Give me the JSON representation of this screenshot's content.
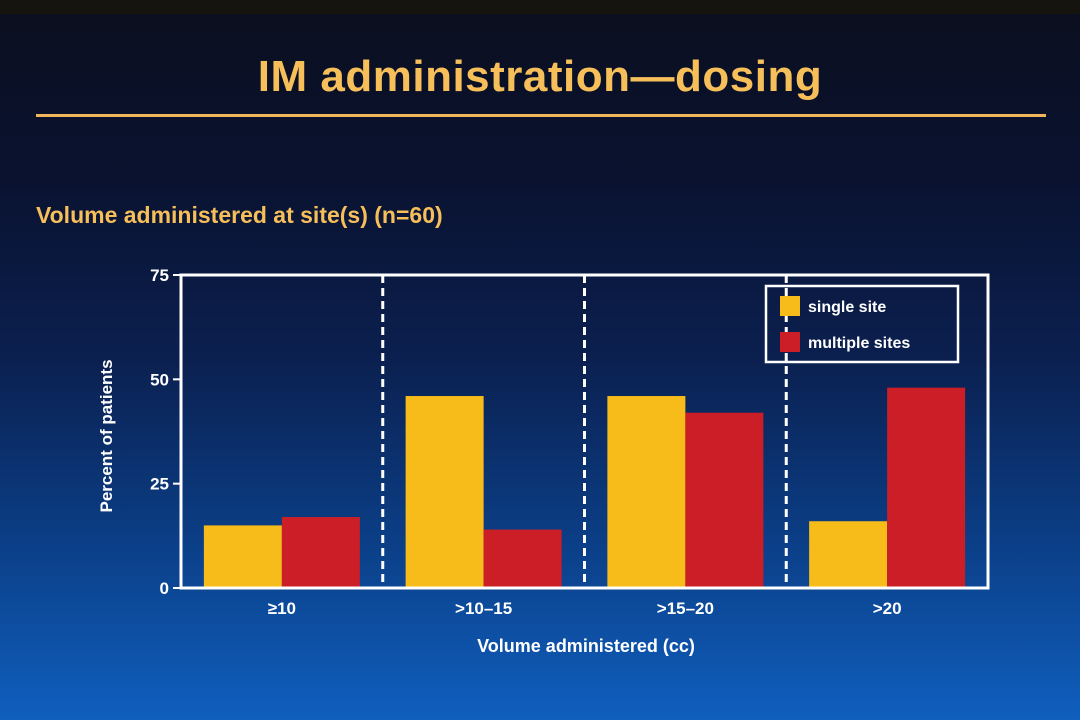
{
  "title": "IM administration—dosing",
  "subtitle": "Volume administered at site(s) (n=60)",
  "colors": {
    "single": "#f7bb1a",
    "multiple": "#cc1e26",
    "text": "#f6bf5a"
  },
  "chart_data": {
    "type": "bar",
    "categories": [
      "≥10",
      ">10–15",
      ">15–20",
      ">20"
    ],
    "series": [
      {
        "name": "single site",
        "values": [
          15,
          46,
          46,
          16
        ]
      },
      {
        "name": "multiple sites",
        "values": [
          17,
          14,
          42,
          48
        ]
      }
    ],
    "xlabel": "Volume administered (cc)",
    "ylabel": "Percent of patients",
    "ylim": [
      0,
      75
    ],
    "yticks": [
      0,
      25,
      50,
      75
    ],
    "legend_position": "top-right",
    "grid": false
  }
}
